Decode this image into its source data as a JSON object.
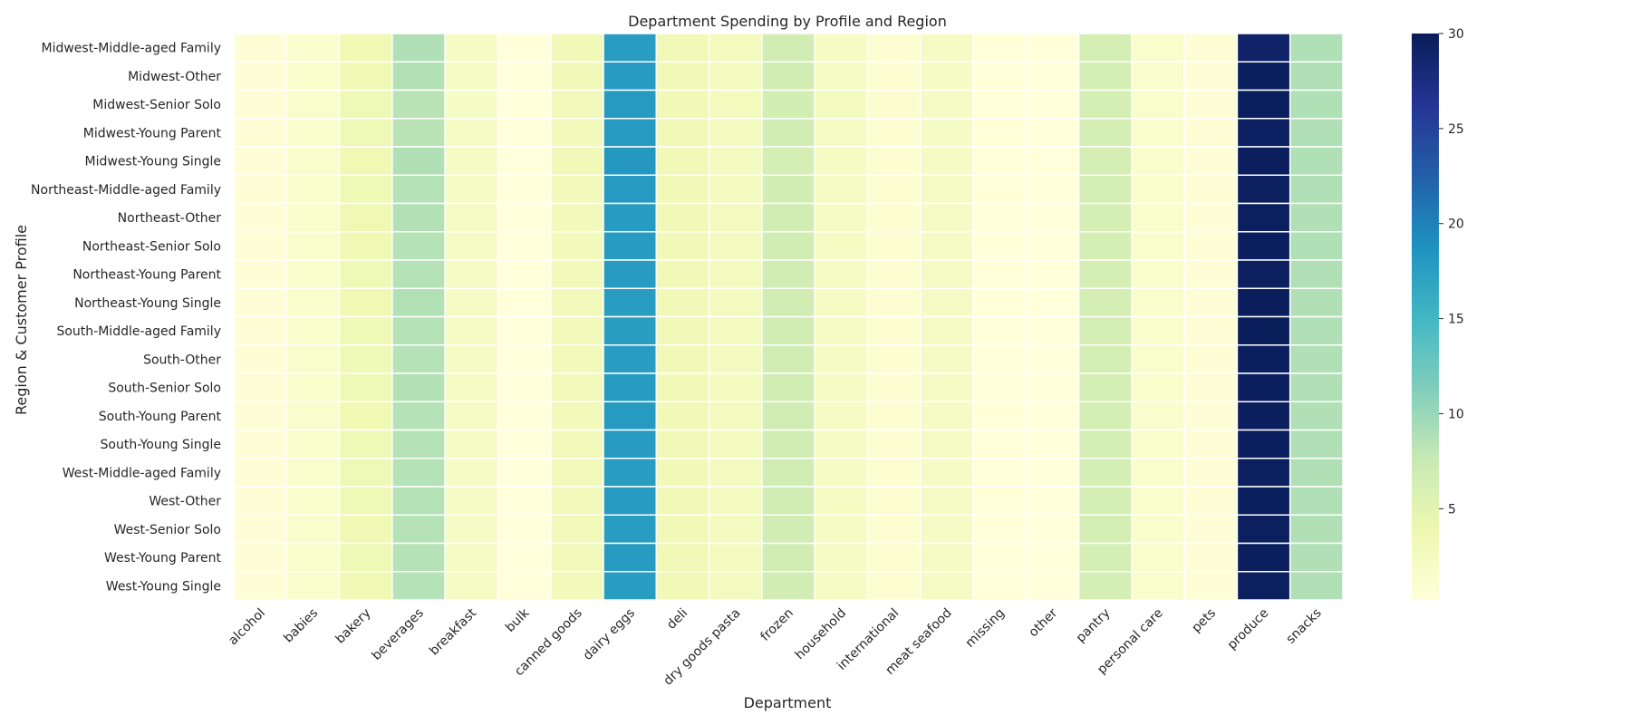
{
  "chart_data": {
    "type": "heatmap",
    "title": "Department Spending by Profile and Region",
    "xlabel": "Department",
    "ylabel": "Region & Customer Profile",
    "columns": [
      "alcohol",
      "babies",
      "bakery",
      "beverages",
      "breakfast",
      "bulk",
      "canned goods",
      "dairy eggs",
      "deli",
      "dry goods pasta",
      "frozen",
      "household",
      "international",
      "meat seafood",
      "missing",
      "other",
      "pantry",
      "personal care",
      "pets",
      "produce",
      "snacks"
    ],
    "rows": [
      "Midwest-Middle-aged Family",
      "Midwest-Other",
      "Midwest-Senior Solo",
      "Midwest-Young Parent",
      "Midwest-Young Single",
      "Northeast-Middle-aged Family",
      "Northeast-Other",
      "Northeast-Senior Solo",
      "Northeast-Young Parent",
      "Northeast-Young Single",
      "South-Middle-aged Family",
      "South-Other",
      "South-Senior Solo",
      "South-Young Parent",
      "South-Young Single",
      "West-Middle-aged Family",
      "West-Other",
      "West-Senior Solo",
      "West-Young Parent",
      "West-Young Single"
    ],
    "values": [
      [
        0.5,
        1.3,
        3.6,
        8.8,
        2.2,
        0.2,
        3.2,
        17.6,
        3.3,
        2.7,
        6.7,
        2.3,
        0.9,
        2.2,
        0.3,
        0.2,
        6.4,
        1.4,
        0.6,
        29.0,
        8.9
      ],
      [
        0.6,
        1.4,
        3.6,
        8.7,
        2.1,
        0.2,
        3.2,
        17.8,
        3.4,
        2.6,
        6.6,
        2.3,
        0.9,
        2.0,
        0.3,
        0.2,
        6.3,
        1.3,
        0.5,
        29.7,
        8.8
      ],
      [
        0.6,
        1.4,
        3.5,
        8.4,
        2.0,
        0.2,
        3.1,
        17.9,
        3.3,
        2.7,
        6.5,
        2.4,
        1.0,
        2.1,
        0.3,
        0.2,
        6.4,
        1.4,
        0.6,
        29.7,
        8.9
      ],
      [
        0.6,
        1.5,
        3.5,
        8.4,
        2.1,
        0.2,
        3.0,
        17.9,
        3.3,
        2.6,
        6.6,
        2.3,
        0.9,
        2.0,
        0.3,
        0.2,
        6.3,
        1.4,
        0.6,
        29.4,
        8.8
      ],
      [
        0.5,
        1.4,
        3.6,
        8.8,
        2.2,
        0.2,
        3.2,
        18.1,
        3.2,
        2.6,
        6.4,
        2.3,
        0.9,
        2.2,
        0.3,
        0.2,
        6.3,
        1.4,
        0.5,
        29.6,
        8.9
      ],
      [
        0.5,
        1.4,
        3.5,
        8.6,
        2.1,
        0.2,
        3.1,
        17.9,
        3.3,
        2.6,
        6.5,
        2.3,
        0.9,
        2.1,
        0.3,
        0.2,
        6.3,
        1.4,
        0.6,
        29.5,
        8.8
      ],
      [
        0.6,
        1.4,
        3.6,
        8.7,
        2.1,
        0.2,
        3.1,
        17.8,
        3.4,
        2.6,
        6.6,
        2.3,
        0.9,
        2.1,
        0.3,
        0.2,
        6.3,
        1.4,
        0.6,
        29.5,
        8.8
      ],
      [
        0.6,
        1.4,
        3.6,
        8.6,
        2.1,
        0.2,
        3.1,
        17.8,
        3.3,
        2.6,
        6.6,
        2.3,
        0.9,
        2.1,
        0.3,
        0.2,
        6.3,
        1.4,
        0.6,
        29.6,
        8.9
      ],
      [
        0.6,
        1.4,
        3.5,
        8.6,
        2.1,
        0.2,
        3.1,
        17.8,
        3.3,
        2.6,
        6.6,
        2.3,
        0.9,
        2.1,
        0.3,
        0.2,
        6.3,
        1.4,
        0.6,
        29.5,
        8.8
      ],
      [
        0.6,
        1.4,
        3.6,
        8.7,
        2.1,
        0.2,
        3.1,
        17.7,
        3.3,
        2.6,
        6.6,
        2.3,
        0.9,
        2.1,
        0.3,
        0.2,
        6.3,
        1.4,
        0.6,
        29.8,
        8.8
      ],
      [
        0.6,
        1.4,
        3.5,
        8.6,
        2.1,
        0.2,
        3.1,
        17.5,
        3.3,
        2.6,
        6.6,
        2.3,
        0.9,
        2.1,
        0.3,
        0.2,
        6.3,
        1.4,
        0.6,
        29.8,
        8.8
      ],
      [
        0.6,
        1.4,
        3.5,
        8.6,
        2.1,
        0.2,
        3.1,
        17.6,
        3.3,
        2.6,
        6.6,
        2.3,
        0.9,
        2.1,
        0.3,
        0.2,
        6.3,
        1.4,
        0.6,
        29.6,
        8.8
      ],
      [
        0.6,
        1.4,
        3.5,
        8.7,
        2.1,
        0.2,
        3.1,
        17.8,
        3.3,
        2.6,
        6.6,
        2.3,
        0.9,
        2.1,
        0.3,
        0.2,
        6.3,
        1.4,
        0.6,
        29.6,
        8.8
      ],
      [
        0.6,
        1.4,
        3.6,
        8.6,
        2.1,
        0.2,
        3.1,
        17.9,
        3.3,
        2.6,
        6.6,
        2.3,
        0.9,
        2.1,
        0.3,
        0.2,
        6.3,
        1.4,
        0.6,
        29.6,
        8.8
      ],
      [
        0.6,
        1.4,
        3.5,
        8.6,
        2.1,
        0.2,
        3.1,
        17.8,
        3.3,
        2.6,
        6.6,
        2.3,
        0.9,
        2.1,
        0.3,
        0.2,
        6.3,
        1.4,
        0.6,
        29.6,
        8.8
      ],
      [
        0.6,
        1.4,
        3.5,
        8.6,
        2.1,
        0.2,
        3.1,
        17.6,
        3.3,
        2.6,
        6.6,
        2.3,
        0.9,
        2.1,
        0.3,
        0.2,
        6.3,
        1.4,
        0.6,
        29.5,
        8.8
      ],
      [
        0.6,
        1.4,
        3.5,
        8.6,
        2.1,
        0.2,
        3.1,
        17.8,
        3.3,
        2.6,
        6.6,
        2.3,
        0.9,
        2.1,
        0.3,
        0.2,
        6.3,
        1.4,
        0.6,
        29.7,
        8.8
      ],
      [
        0.5,
        1.4,
        3.6,
        8.6,
        2.1,
        0.2,
        3.1,
        17.7,
        3.3,
        2.6,
        6.6,
        2.3,
        0.9,
        2.1,
        0.3,
        0.2,
        6.3,
        1.4,
        0.6,
        29.5,
        8.8
      ],
      [
        0.6,
        1.4,
        3.5,
        8.6,
        2.1,
        0.2,
        3.1,
        17.8,
        3.3,
        2.6,
        6.6,
        2.3,
        0.9,
        2.1,
        0.3,
        0.2,
        6.3,
        1.4,
        0.6,
        29.6,
        8.8
      ],
      [
        0.5,
        1.4,
        3.6,
        8.6,
        2.1,
        0.2,
        3.1,
        17.6,
        3.3,
        2.6,
        6.6,
        2.3,
        0.9,
        2.1,
        0.3,
        0.2,
        6.3,
        1.4,
        0.6,
        29.5,
        8.8
      ]
    ],
    "colorbar": {
      "colormap": "YlGnBu",
      "vmin": 0.2,
      "vmax": 30,
      "ticks": [
        5,
        10,
        15,
        20,
        25,
        30
      ]
    },
    "grid": false
  }
}
